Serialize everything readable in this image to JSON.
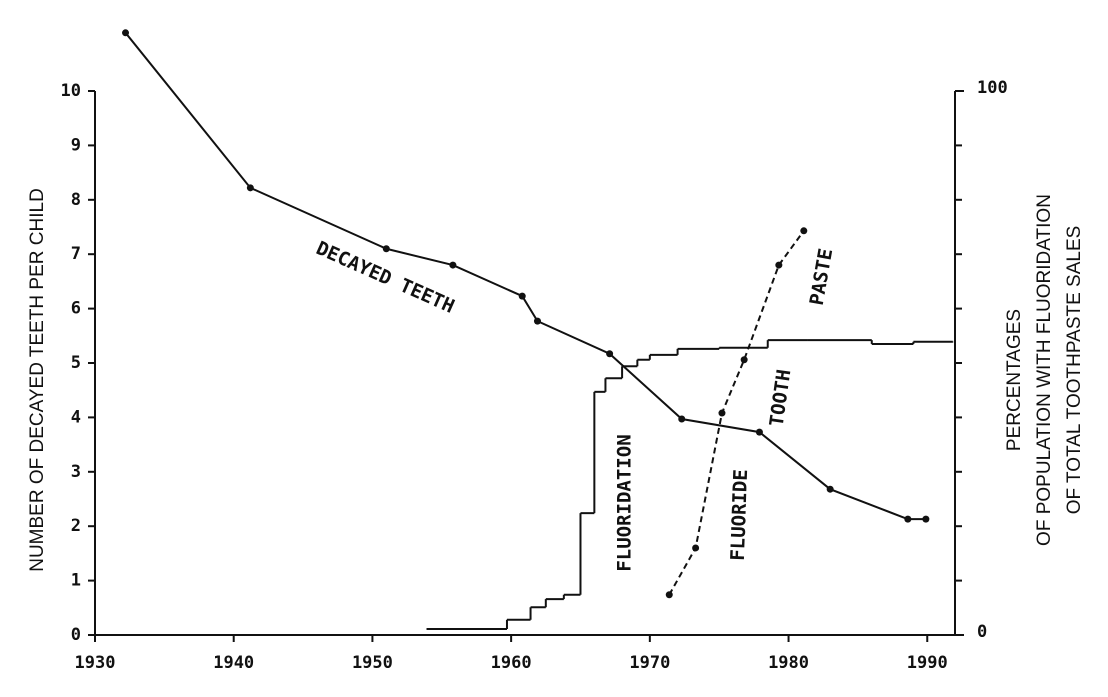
{
  "chart_data": {
    "type": "line",
    "xlim": [
      1930,
      1992
    ],
    "xticks": [
      1930,
      1940,
      1950,
      1960,
      1970,
      1980,
      1990
    ],
    "ylim": [
      0,
      10
    ],
    "yticks": [
      0,
      1,
      2,
      3,
      4,
      5,
      6,
      7,
      8,
      9,
      10
    ],
    "y2lim": [
      0,
      100
    ],
    "y2ticks": [
      0,
      100
    ],
    "ylabel": "NUMBER OF DECAYED TEETH PER CHILD",
    "y2label": [
      "PERCENTAGES",
      "OF POPULATION WITH FLUORIDATION",
      "OF TOTAL TOOTHPASTE SALES"
    ],
    "color": "#111111",
    "series": [
      {
        "x": [
          1932.2,
          1941.2,
          1951.0,
          1955.8,
          1960.8,
          1961.9,
          1967.1,
          1972.3,
          1977.9,
          1983.0,
          1988.6,
          1989.9
        ],
        "values": [
          11.07,
          8.22,
          7.1,
          6.8,
          6.23,
          5.77,
          5.17,
          3.97,
          3.73,
          2.68,
          2.13,
          2.13
        ],
        "markers": true,
        "dashed": false,
        "step": false
      },
      {
        "x": [
          1953.9,
          1959.7,
          1961.4,
          1962.5,
          1963.8,
          1965.0,
          1966.0,
          1966.8,
          1968.0,
          1969.1,
          1970.0,
          1972.0,
          1975.0,
          1978.5,
          1981.4,
          1986.0,
          1989.0,
          1991.8
        ],
        "values": [
          1.1,
          2.8,
          5.1,
          6.6,
          7.4,
          22.4,
          44.7,
          47.2,
          49.4,
          50.6,
          51.5,
          52.6,
          52.8,
          54.2,
          54.2,
          53.5,
          53.9,
          53.9
        ],
        "axis": "y2",
        "markers": false,
        "dashed": false,
        "step": true
      },
      {
        "x": [
          1971.4,
          1973.3,
          1975.2,
          1976.8,
          1979.3,
          1981.1
        ],
        "values": [
          7.4,
          16.0,
          40.8,
          50.6,
          68.0,
          74.3
        ],
        "axis": "y2",
        "markers": true,
        "dashed": true,
        "step": false
      }
    ],
    "annotations": [
      "DECAYED TEETH",
      "FLUORIDATION",
      "FLUORIDE",
      "TOOTH",
      "PASTE"
    ]
  }
}
